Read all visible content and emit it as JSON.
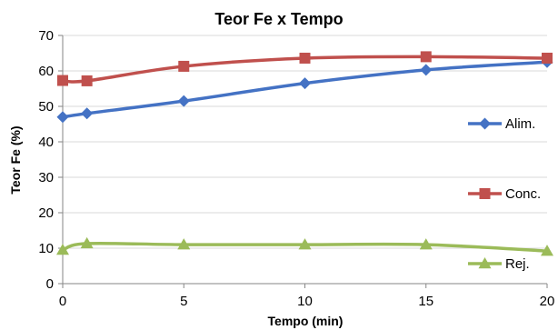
{
  "chart_data": {
    "type": "line",
    "title": "Teor Fe x Tempo",
    "xlabel": "Tempo (min)",
    "ylabel": "Teor Fe (%)",
    "x": [
      0,
      1,
      5,
      10,
      15,
      20
    ],
    "xticks": [
      0,
      5,
      10,
      15,
      20
    ],
    "xlim": [
      0,
      20
    ],
    "ylim": [
      0,
      70
    ],
    "yticks": [
      0,
      10,
      20,
      30,
      40,
      50,
      60,
      70
    ],
    "grid": true,
    "legend_position": "right",
    "smooth": true,
    "series": [
      {
        "name": "Alim.",
        "values": [
          47,
          48,
          51.5,
          56.5,
          60.3,
          62.5
        ],
        "color": "#4472C4",
        "marker": "diamond"
      },
      {
        "name": "Conc.",
        "values": [
          57.3,
          57.2,
          61.3,
          63.6,
          64,
          63.6
        ],
        "color": "#C0504D",
        "marker": "square"
      },
      {
        "name": "Rej.",
        "values": [
          9.5,
          11.3,
          11,
          11,
          11,
          9.2
        ],
        "color": "#9BBB59",
        "marker": "triangle"
      }
    ]
  }
}
